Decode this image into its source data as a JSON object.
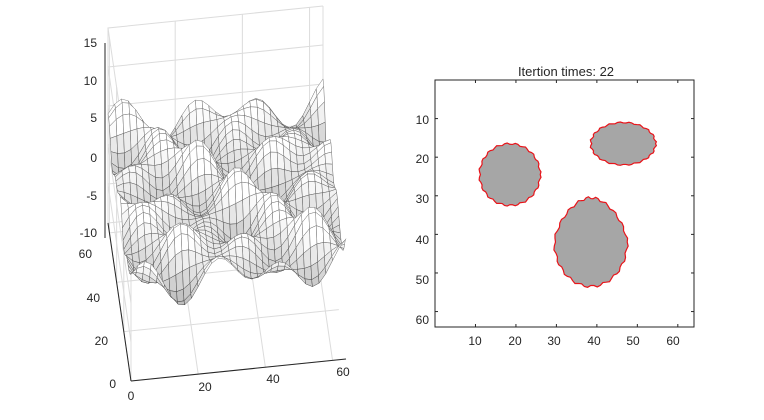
{
  "chart_data": [
    {
      "type": "surface-mesh",
      "title": "",
      "xlabel": "",
      "ylabel": "",
      "zlabel": "",
      "x_ticks": [
        "0",
        "20",
        "40",
        "60"
      ],
      "y_ticks": [
        "0",
        "20",
        "40",
        "60"
      ],
      "z_ticks": [
        "-10",
        "-5",
        "0",
        "5",
        "10",
        "15"
      ],
      "xlim": [
        0,
        64
      ],
      "ylim": [
        0,
        64
      ],
      "zlim": [
        -10,
        15
      ],
      "grid": true,
      "colormap": "gray",
      "mesh_resolution": 64
    },
    {
      "type": "contour-segmentation",
      "title": "Itertion times: 22",
      "xlabel": "",
      "ylabel": "",
      "x_ticks": [
        "10",
        "20",
        "30",
        "40",
        "50",
        "60"
      ],
      "y_ticks": [
        "10",
        "20",
        "30",
        "40",
        "50",
        "60"
      ],
      "xlim": [
        0,
        64
      ],
      "ylim": [
        64,
        0
      ],
      "region_color": "#a6a6a6",
      "contour_color": "#e8141a",
      "regions": [
        {
          "name": "",
          "center": [
            18.5,
            24.5
          ],
          "radius": [
            7.5,
            8
          ]
        },
        {
          "name": "",
          "center": [
            46.5,
            16.5
          ],
          "radius": [
            8,
            5.5
          ]
        },
        {
          "name": "",
          "center": [
            38.5,
            42
          ],
          "radius": [
            9,
            11.5
          ]
        }
      ]
    }
  ]
}
